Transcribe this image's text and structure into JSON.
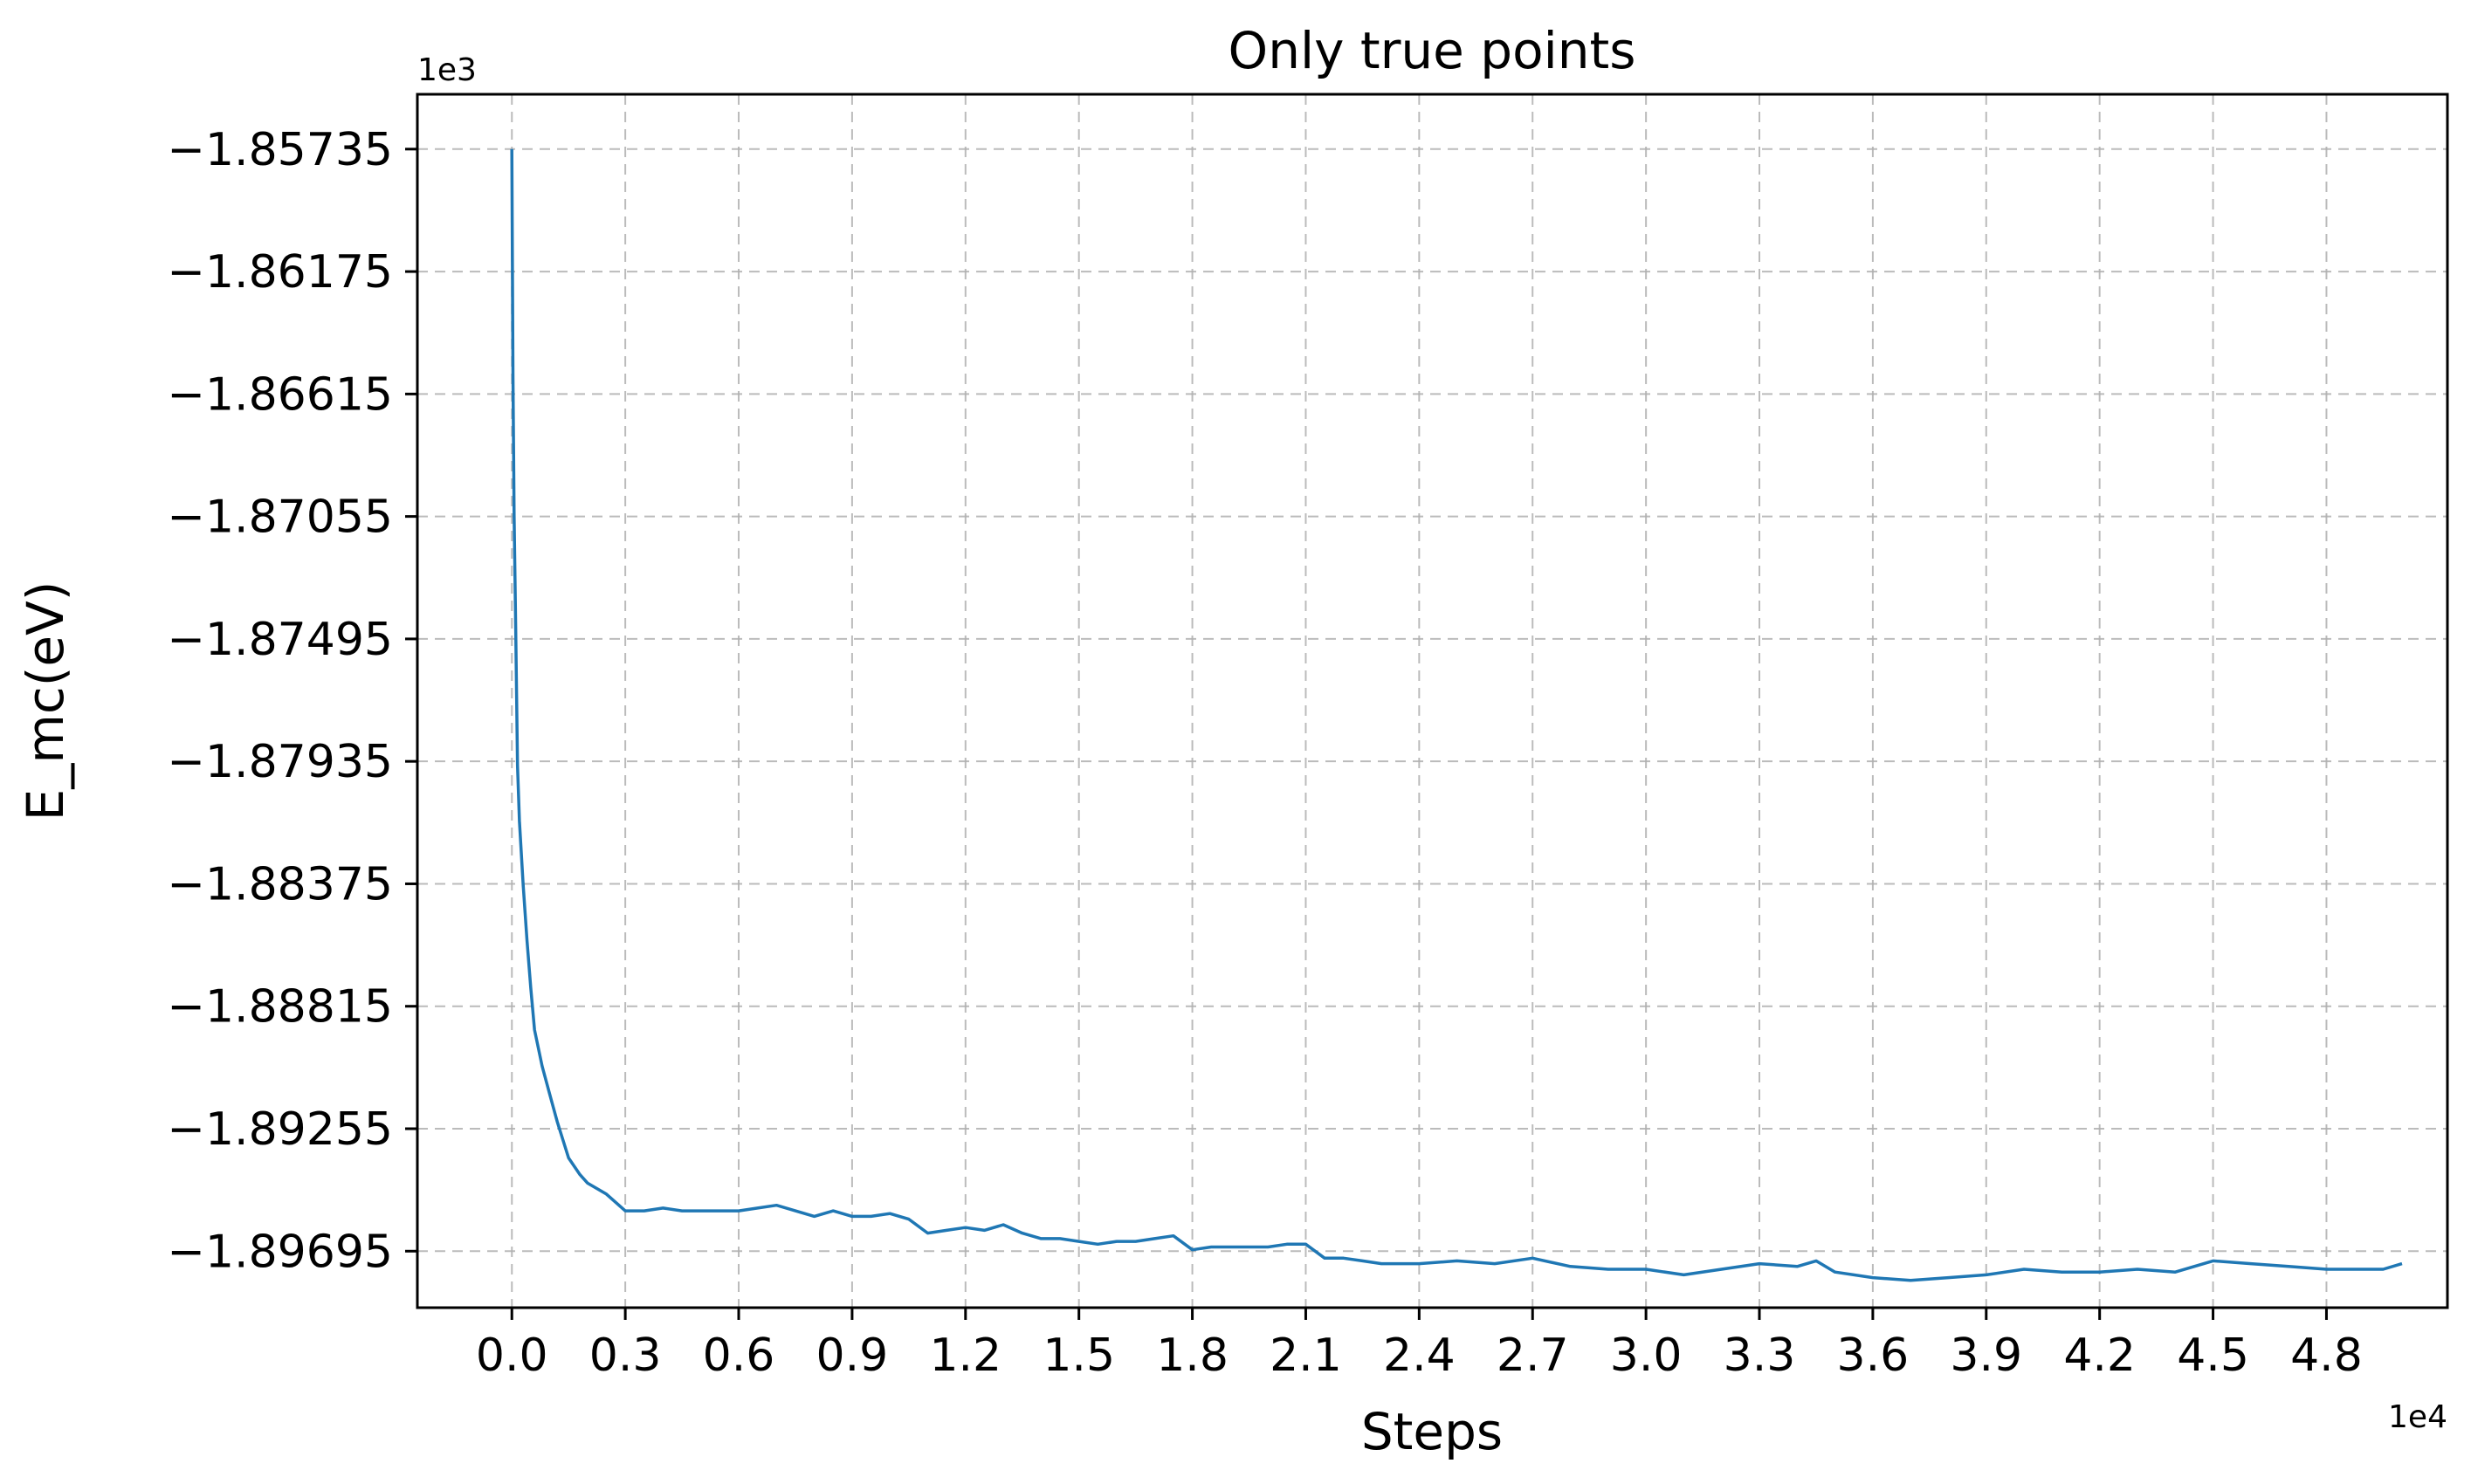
{
  "chart_data": {
    "type": "line",
    "title": "Only true points",
    "xlabel": "Steps",
    "ylabel": "E_mc(eV)",
    "x_offset_label": "1e4",
    "y_offset_label": "1e3",
    "xlim": [
      -0.25,
      5.12
    ],
    "ylim": [
      -1.89898,
      -1.85538
    ],
    "xticks": [
      0.0,
      0.3,
      0.6,
      0.9,
      1.2,
      1.5,
      1.8,
      2.1,
      2.4,
      2.7,
      3.0,
      3.3,
      3.6,
      3.9,
      4.2,
      4.5,
      4.8
    ],
    "xtick_labels": [
      "0.0",
      "0.3",
      "0.6",
      "0.9",
      "1.2",
      "1.5",
      "1.8",
      "2.1",
      "2.4",
      "2.7",
      "3.0",
      "3.3",
      "3.6",
      "3.9",
      "4.2",
      "4.5",
      "4.8"
    ],
    "yticks": [
      -1.85735,
      -1.86175,
      -1.86615,
      -1.87055,
      -1.87495,
      -1.87935,
      -1.88375,
      -1.88815,
      -1.89255,
      -1.89695
    ],
    "ytick_labels": [
      "−1.85735",
      "−1.86175",
      "−1.86615",
      "−1.87055",
      "−1.87495",
      "−1.87935",
      "−1.88375",
      "−1.88815",
      "−1.89255",
      "−1.89695"
    ],
    "grid": true,
    "color": "#1f77b4",
    "series": [
      {
        "x": [
          0.0,
          0.001,
          0.003,
          0.006,
          0.01,
          0.015,
          0.02,
          0.03,
          0.04,
          0.05,
          0.06,
          0.08,
          0.1,
          0.12,
          0.15,
          0.18,
          0.2,
          0.25,
          0.3,
          0.35,
          0.4,
          0.45,
          0.5,
          0.55,
          0.6,
          0.65,
          0.7,
          0.75,
          0.8,
          0.85,
          0.9,
          0.95,
          1.0,
          1.05,
          1.1,
          1.15,
          1.2,
          1.25,
          1.3,
          1.35,
          1.4,
          1.45,
          1.5,
          1.55,
          1.6,
          1.65,
          1.7,
          1.75,
          1.8,
          1.85,
          1.9,
          1.95,
          2.0,
          2.05,
          2.1,
          2.15,
          2.2,
          2.25,
          2.3,
          2.35,
          2.4,
          2.5,
          2.6,
          2.7,
          2.8,
          2.9,
          3.0,
          3.1,
          3.2,
          3.3,
          3.4,
          3.45,
          3.5,
          3.6,
          3.7,
          3.8,
          3.9,
          4.0,
          4.1,
          4.2,
          4.3,
          4.4,
          4.5,
          4.6,
          4.7,
          4.8,
          4.9,
          4.95,
          5.0
        ],
        "y": [
          -1.85735,
          -1.8605,
          -1.8655,
          -1.8705,
          -1.8745,
          -1.8795,
          -1.8815,
          -1.8838,
          -1.8858,
          -1.8875,
          -1.889,
          -1.8903,
          -1.8913,
          -1.8923,
          -1.8936,
          -1.8942,
          -1.8945,
          -1.8949,
          -1.8955,
          -1.8955,
          -1.8954,
          -1.8955,
          -1.8955,
          -1.8955,
          -1.8955,
          -1.8954,
          -1.8953,
          -1.8955,
          -1.8957,
          -1.8955,
          -1.8957,
          -1.8957,
          -1.8956,
          -1.8958,
          -1.8963,
          -1.8962,
          -1.8961,
          -1.8962,
          -1.896,
          -1.8963,
          -1.8965,
          -1.8965,
          -1.8966,
          -1.8967,
          -1.8966,
          -1.8966,
          -1.8965,
          -1.8964,
          -1.8969,
          -1.8968,
          -1.8968,
          -1.8968,
          -1.8968,
          -1.8967,
          -1.8967,
          -1.8972,
          -1.8972,
          -1.8973,
          -1.8974,
          -1.8974,
          -1.8974,
          -1.8973,
          -1.8974,
          -1.8972,
          -1.8975,
          -1.8976,
          -1.8976,
          -1.8978,
          -1.8976,
          -1.8974,
          -1.8975,
          -1.8973,
          -1.8977,
          -1.8979,
          -1.898,
          -1.8979,
          -1.8978,
          -1.8976,
          -1.8977,
          -1.8977,
          -1.8976,
          -1.8977,
          -1.8973,
          -1.8974,
          -1.8975,
          -1.8976,
          -1.8976,
          -1.8976,
          -1.8974
        ]
      }
    ]
  }
}
